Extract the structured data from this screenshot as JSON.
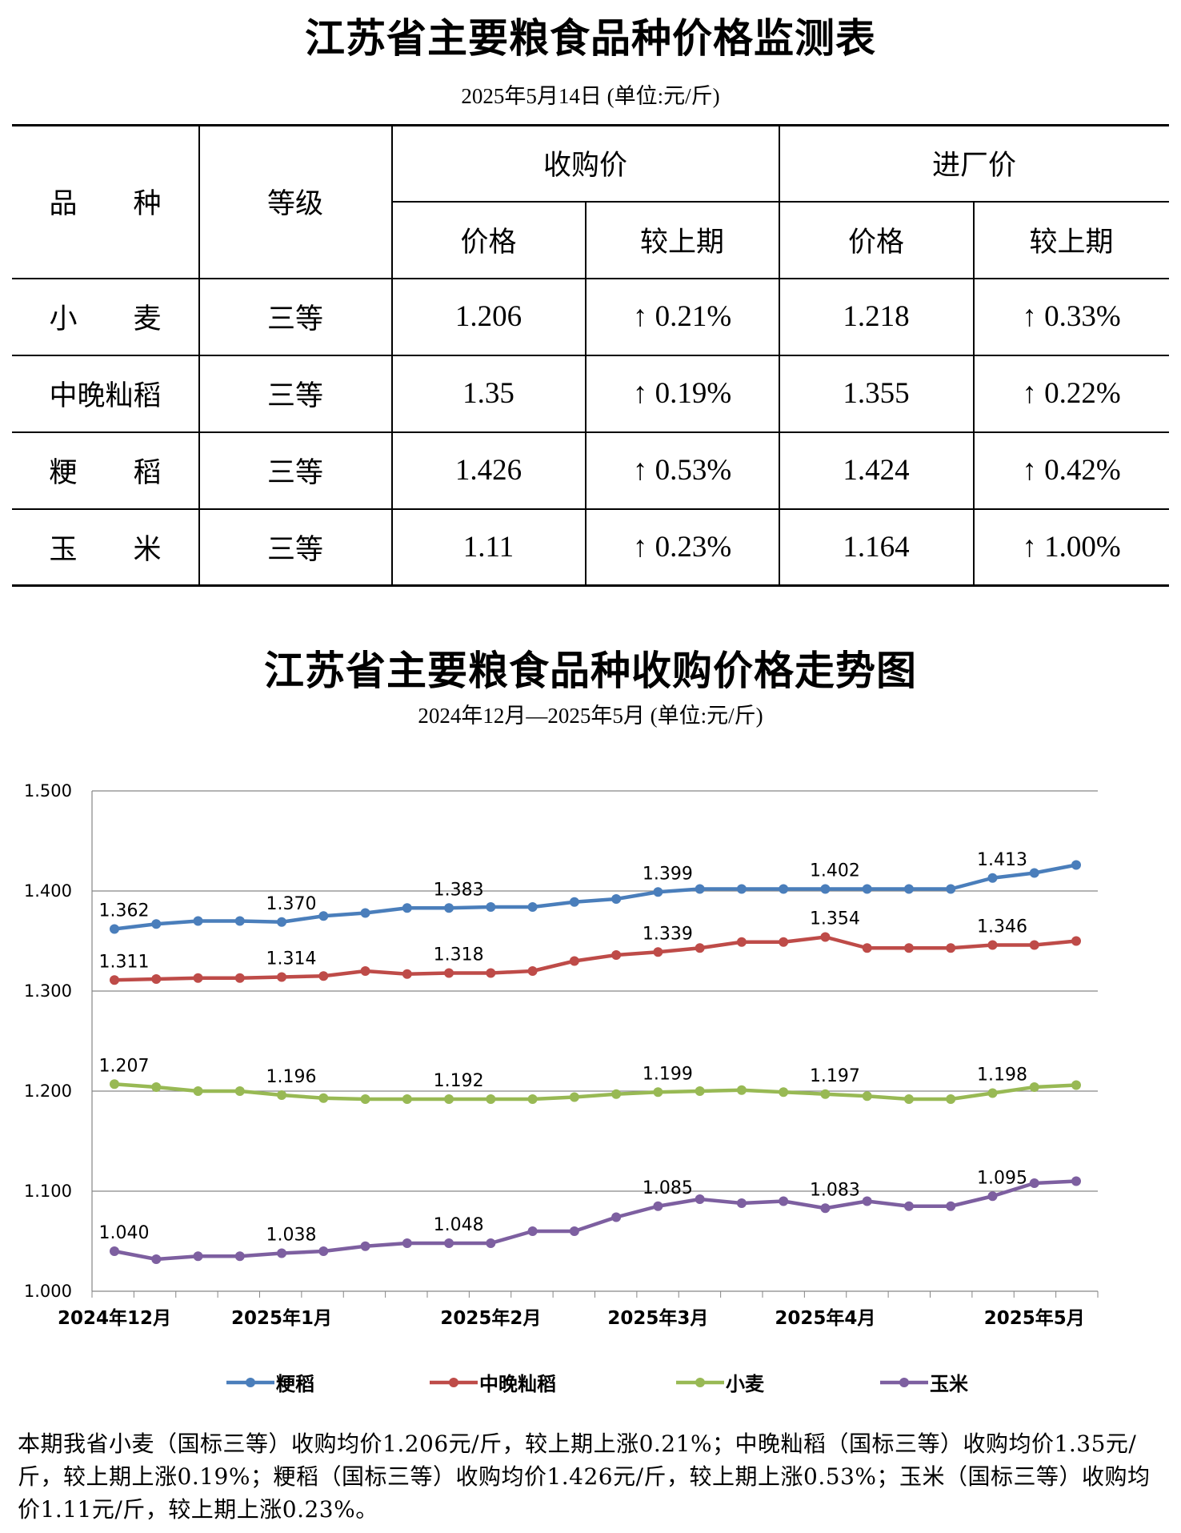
{
  "table_title": "江苏省主要粮食品种价格监测表",
  "table_subtitle": "2025年5月14日  (单位:元/斤)",
  "table": {
    "headers": {
      "variety": "品　　种",
      "grade": "等级",
      "purchase": "收购价",
      "factory": "进厂价",
      "price": "价格",
      "change": "较上期"
    },
    "rows": [
      {
        "variety": "小　　麦",
        "grade": "三等",
        "purchase_price": "1.206",
        "purchase_change": "↑ 0.21%",
        "factory_price": "1.218",
        "factory_change": "↑ 0.33%"
      },
      {
        "variety": "中晚籼稻",
        "grade": "三等",
        "purchase_price": "1.35",
        "purchase_change": "↑ 0.19%",
        "factory_price": "1.355",
        "factory_change": "↑ 0.22%"
      },
      {
        "variety": "粳　　稻",
        "grade": "三等",
        "purchase_price": "1.426",
        "purchase_change": "↑ 0.53%",
        "factory_price": "1.424",
        "factory_change": "↑ 0.42%"
      },
      {
        "variety": "玉　　米",
        "grade": "三等",
        "purchase_price": "1.11",
        "purchase_change": "↑ 0.23%",
        "factory_price": "1.164",
        "factory_change": "↑ 1.00%"
      }
    ]
  },
  "chart_title": "江苏省主要粮食品种收购价格走势图",
  "chart_subtitle": "2024年12月—2025年5月  (单位:元/斤)",
  "chart_data": {
    "type": "line",
    "ylim": [
      1.0,
      1.5
    ],
    "yticks": [
      "1.500",
      "1.400",
      "1.300",
      "1.200",
      "1.100",
      "1.000"
    ],
    "xtick_labels": [
      "2024年12月",
      "2025年1月",
      "2025年2月",
      "2025年3月",
      "2025年4月",
      "2025年5月"
    ],
    "xtick_point_index": [
      0,
      4,
      9,
      13,
      17,
      22
    ],
    "grid": true,
    "legend_position": "bottom",
    "series": [
      {
        "name": "粳稻",
        "color": "#4a7ebb",
        "values": [
          1.362,
          1.367,
          1.37,
          1.37,
          1.369,
          1.375,
          1.378,
          1.383,
          1.383,
          1.384,
          1.384,
          1.389,
          1.392,
          1.399,
          1.402,
          1.402,
          1.402,
          1.402,
          1.402,
          1.402,
          1.402,
          1.413,
          1.418,
          1.426
        ],
        "labels": {
          "0": "1.362",
          "4": "1.370",
          "8": "1.383",
          "13": "1.399",
          "17": "1.402",
          "21": "1.413"
        }
      },
      {
        "name": "中晚籼稻",
        "color": "#be4b48",
        "values": [
          1.311,
          1.312,
          1.313,
          1.313,
          1.314,
          1.315,
          1.32,
          1.317,
          1.318,
          1.318,
          1.32,
          1.33,
          1.336,
          1.339,
          1.343,
          1.349,
          1.349,
          1.354,
          1.343,
          1.343,
          1.343,
          1.346,
          1.346,
          1.35
        ],
        "labels": {
          "0": "1.311",
          "4": "1.314",
          "8": "1.318",
          "13": "1.339",
          "17": "1.354",
          "21": "1.346"
        }
      },
      {
        "name": "小麦",
        "color": "#98b954",
        "values": [
          1.207,
          1.204,
          1.2,
          1.2,
          1.196,
          1.193,
          1.192,
          1.192,
          1.192,
          1.192,
          1.192,
          1.194,
          1.197,
          1.199,
          1.2,
          1.201,
          1.199,
          1.197,
          1.195,
          1.192,
          1.192,
          1.198,
          1.204,
          1.206
        ],
        "labels": {
          "0": "1.207",
          "4": "1.196",
          "8": "1.192",
          "13": "1.199",
          "17": "1.197",
          "21": "1.198"
        }
      },
      {
        "name": "玉米",
        "color": "#7d5fa0",
        "values": [
          1.04,
          1.032,
          1.035,
          1.035,
          1.038,
          1.04,
          1.045,
          1.048,
          1.048,
          1.048,
          1.06,
          1.06,
          1.074,
          1.085,
          1.092,
          1.088,
          1.09,
          1.083,
          1.09,
          1.085,
          1.085,
          1.095,
          1.108,
          1.11
        ],
        "labels": {
          "0": "1.040",
          "4": "1.038",
          "8": "1.048",
          "13": "1.085",
          "17": "1.083",
          "21": "1.095"
        }
      }
    ]
  },
  "note": "本期我省小麦（国标三等）收购均价1.206元/斤，较上期上涨0.21%；中晚籼稻（国标三等）收购均价1.35元/斤，较上期上涨0.19%；粳稻（国标三等）收购均价1.426元/斤，较上期上涨0.53%；玉米（国标三等）收购均价1.11元/斤，较上期上涨0.23%。"
}
